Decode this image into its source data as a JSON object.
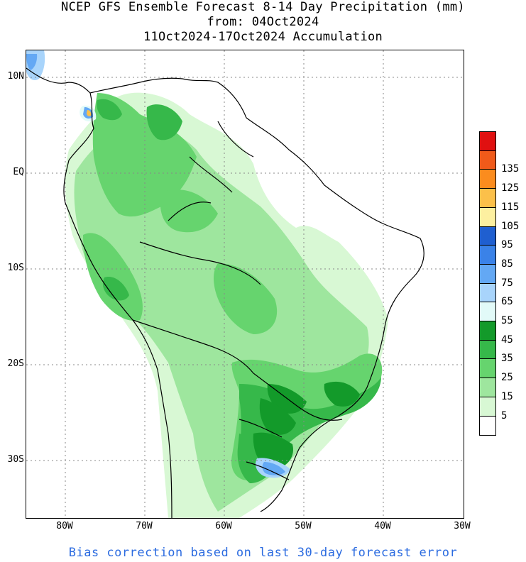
{
  "header": {
    "line1": "NCEP GFS Ensemble Forecast 8-14 Day Precipitation (mm)",
    "line2": "from: 04Oct2024",
    "line3": "11Oct2024-17Oct2024 Accumulation"
  },
  "axes": {
    "x_ticks": [
      "80W",
      "70W",
      "60W",
      "50W",
      "40W",
      "30W"
    ],
    "y_ticks": [
      "10N",
      "EQ",
      "10S",
      "20S",
      "30S"
    ]
  },
  "legend": {
    "levels": [
      {
        "label": "",
        "color": "#e01010"
      },
      {
        "label": "135",
        "color": "#f05a1a"
      },
      {
        "label": "125",
        "color": "#fb8c1e"
      },
      {
        "label": "115",
        "color": "#fbc04a"
      },
      {
        "label": "105",
        "color": "#fdf0a0"
      },
      {
        "label": "95",
        "color": "#1f5fd0"
      },
      {
        "label": "85",
        "color": "#3a82e8"
      },
      {
        "label": "75",
        "color": "#63a8f4"
      },
      {
        "label": "65",
        "color": "#a8d4fb"
      },
      {
        "label": "55",
        "color": "#e2faf8"
      },
      {
        "label": "45",
        "color": "#139a2a"
      },
      {
        "label": "35",
        "color": "#36b84a"
      },
      {
        "label": "25",
        "color": "#66d46e"
      },
      {
        "label": "15",
        "color": "#9ee69e"
      },
      {
        "label": "5",
        "color": "#d8f8d4"
      },
      {
        "label": "",
        "color": "#ffffff"
      }
    ]
  },
  "footer": {
    "note": "Bias correction based on last 30-day forecast error"
  }
}
